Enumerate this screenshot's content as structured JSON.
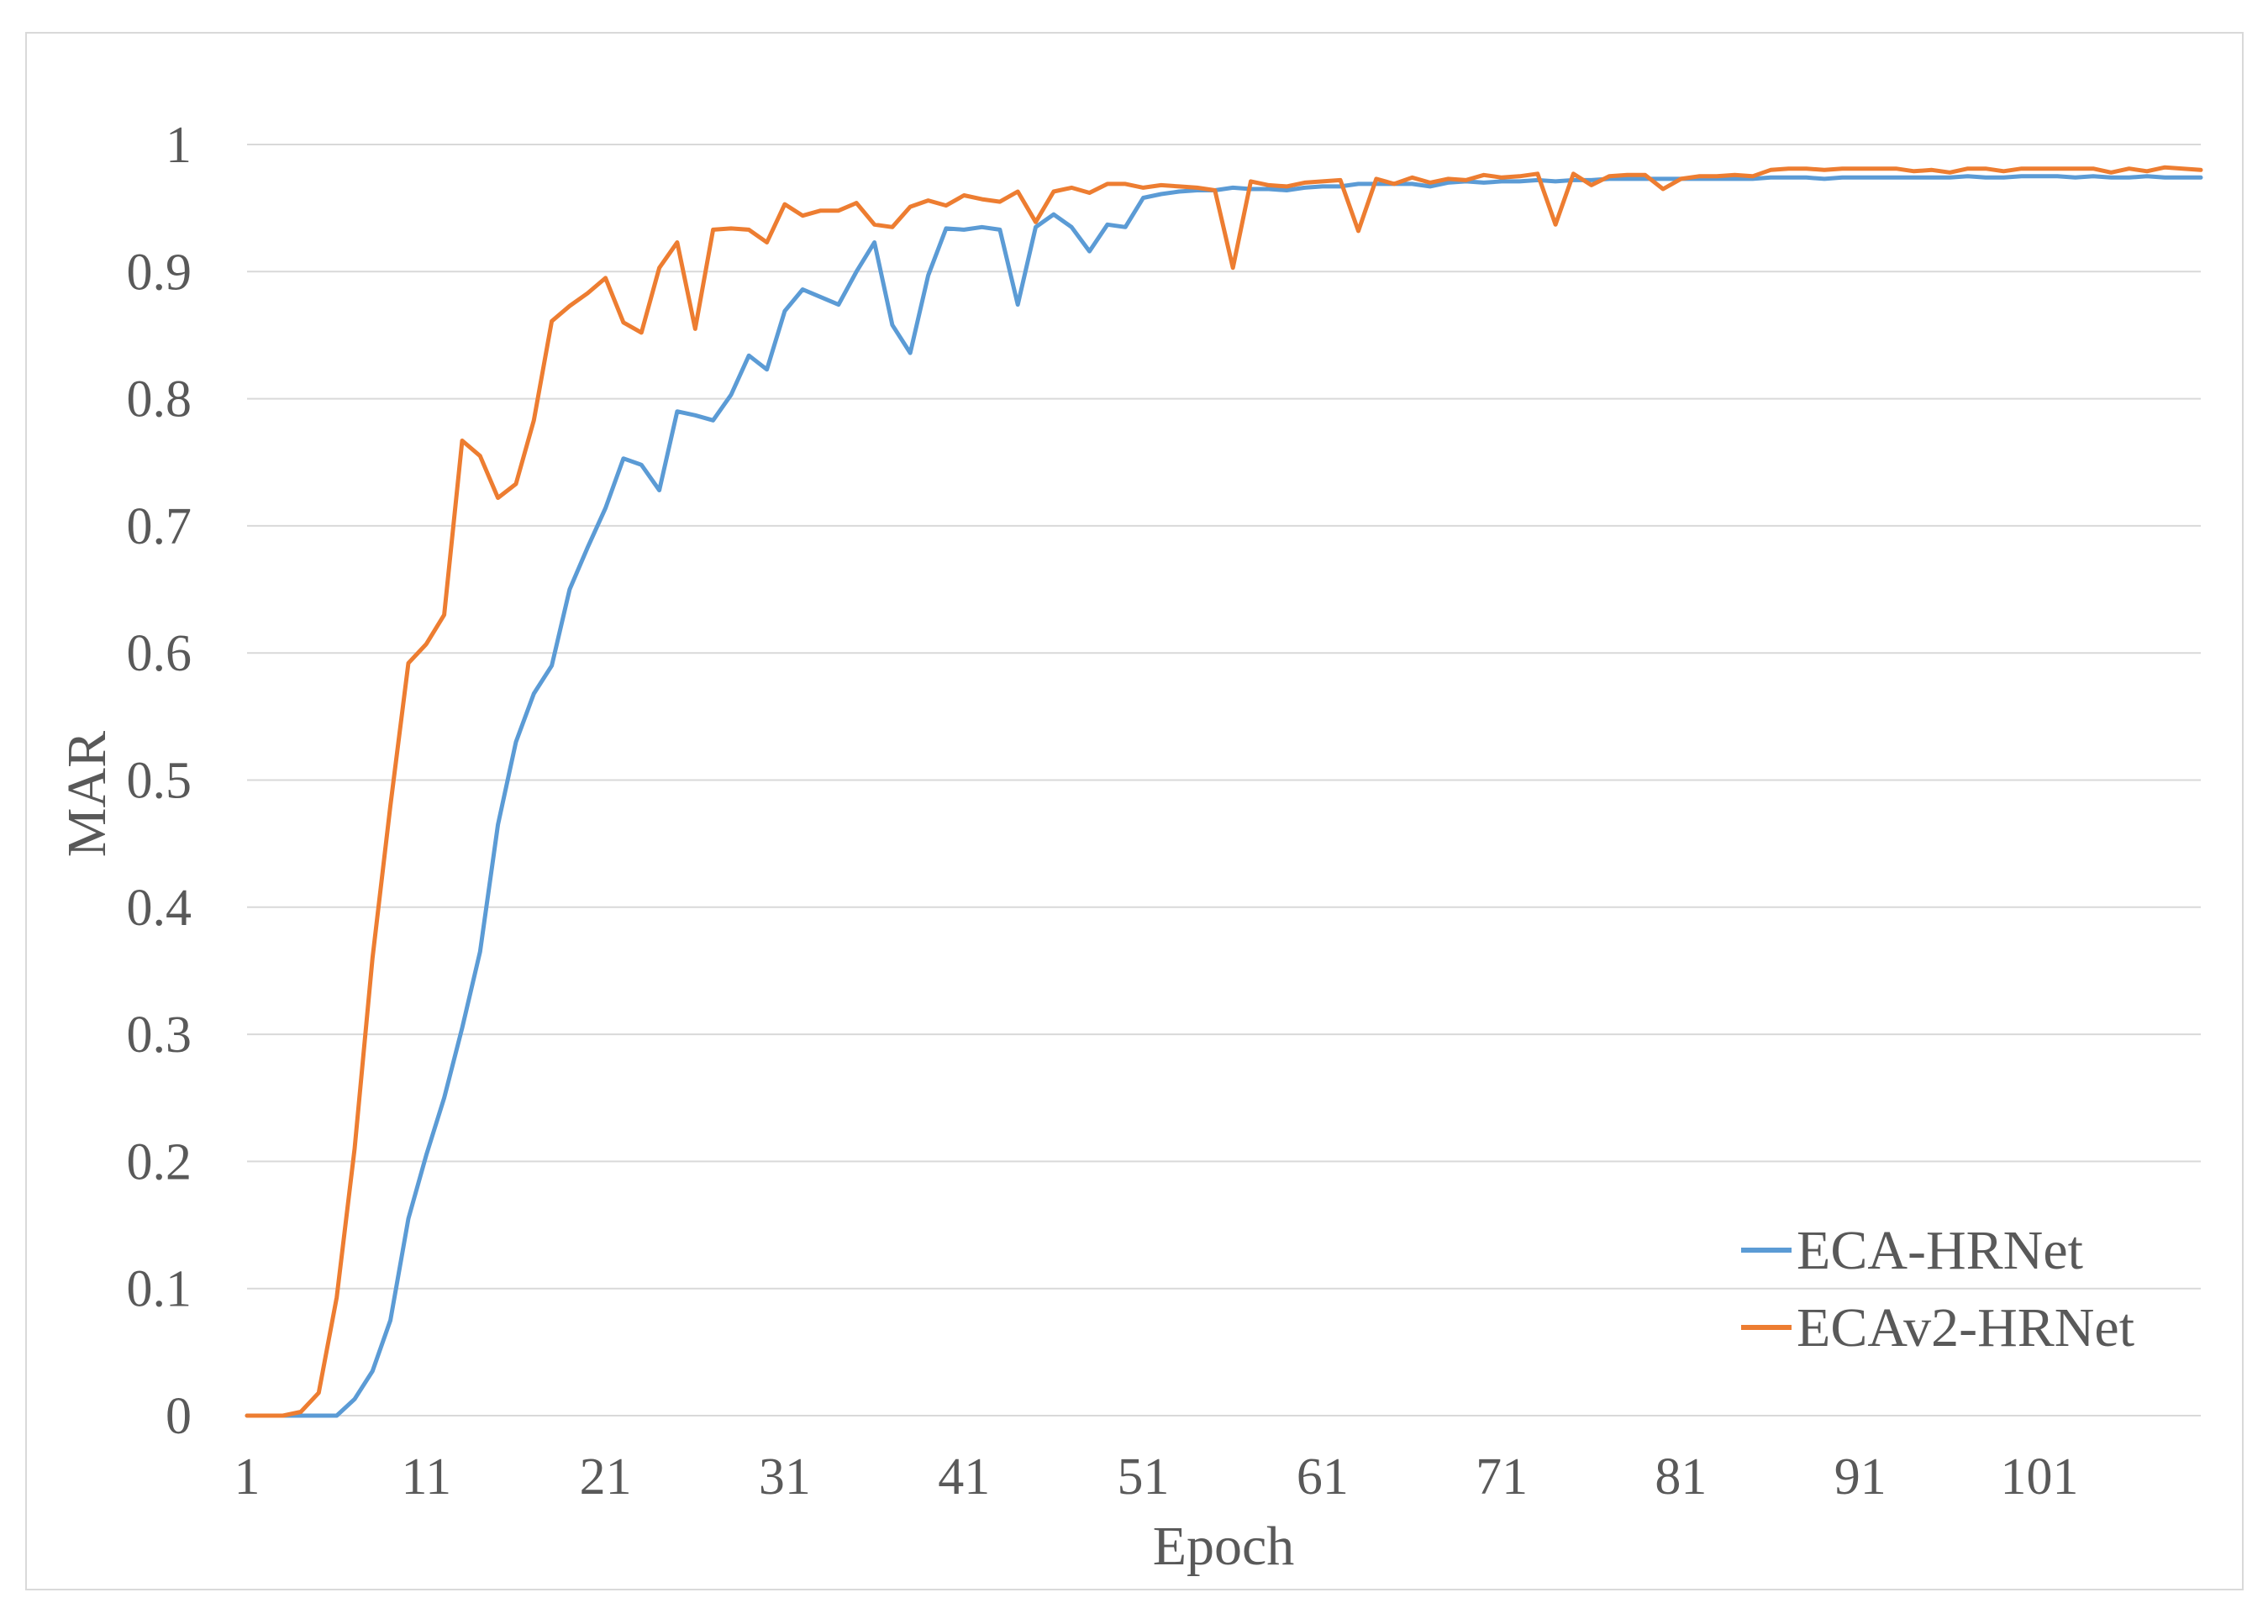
{
  "chart_data": {
    "type": "line",
    "title": "",
    "xlabel": "Epoch",
    "ylabel": "MAR",
    "xlim": [
      1,
      110
    ],
    "ylim": [
      0,
      1
    ],
    "x_ticks": [
      1,
      11,
      21,
      31,
      41,
      51,
      61,
      71,
      81,
      91,
      101
    ],
    "y_ticks": [
      0,
      0.1,
      0.2,
      0.3,
      0.4,
      0.5,
      0.6,
      0.7,
      0.8,
      0.9,
      1
    ],
    "y_tick_labels": [
      "0",
      "0.1",
      "0.2",
      "0.3",
      "0.4",
      "0.5",
      "0.6",
      "0.7",
      "0.8",
      "0.9",
      "1"
    ],
    "grid": true,
    "legend_position": "bottom-right",
    "series": [
      {
        "name": "ECA-HRNet",
        "color": "#5b9bd5",
        "x": [
          1,
          2,
          3,
          4,
          5,
          6,
          7,
          8,
          9,
          10,
          11,
          12,
          13,
          14,
          15,
          16,
          17,
          18,
          19,
          20,
          21,
          22,
          23,
          24,
          25,
          26,
          27,
          28,
          29,
          30,
          31,
          32,
          33,
          34,
          35,
          36,
          37,
          38,
          39,
          40,
          41,
          42,
          43,
          44,
          45,
          46,
          47,
          48,
          49,
          50,
          51,
          52,
          53,
          54,
          55,
          56,
          57,
          58,
          59,
          60,
          61,
          62,
          63,
          64,
          65,
          66,
          67,
          68,
          69,
          70,
          71,
          72,
          73,
          74,
          75,
          76,
          77,
          78,
          79,
          80,
          81,
          82,
          83,
          84,
          85,
          86,
          87,
          88,
          89,
          90,
          91,
          92,
          93,
          94,
          95,
          96,
          97,
          98,
          99,
          100,
          101,
          102,
          103,
          104,
          105,
          106,
          107,
          108,
          109,
          110
        ],
        "values": [
          0,
          0,
          0,
          0,
          0,
          0,
          0.013,
          0.035,
          0.075,
          0.155,
          0.205,
          0.25,
          0.305,
          0.365,
          0.465,
          0.53,
          0.568,
          0.59,
          0.65,
          0.683,
          0.714,
          0.753,
          0.748,
          0.728,
          0.79,
          0.787,
          0.783,
          0.803,
          0.834,
          0.823,
          0.869,
          0.886,
          0.88,
          0.874,
          0.9,
          0.923,
          0.858,
          0.836,
          0.897,
          0.934,
          0.933,
          0.935,
          0.933,
          0.874,
          0.935,
          0.945,
          0.935,
          0.916,
          0.937,
          0.935,
          0.958,
          0.961,
          0.963,
          0.964,
          0.964,
          0.966,
          0.965,
          0.965,
          0.964,
          0.966,
          0.967,
          0.967,
          0.969,
          0.969,
          0.969,
          0.969,
          0.967,
          0.97,
          0.971,
          0.97,
          0.971,
          0.971,
          0.972,
          0.971,
          0.972,
          0.972,
          0.973,
          0.973,
          0.973,
          0.973,
          0.973,
          0.973,
          0.973,
          0.973,
          0.973,
          0.974,
          0.974,
          0.974,
          0.973,
          0.974,
          0.974,
          0.974,
          0.974,
          0.974,
          0.974,
          0.974,
          0.975,
          0.974,
          0.974,
          0.975,
          0.975,
          0.975,
          0.974,
          0.975,
          0.974,
          0.974,
          0.975,
          0.974,
          0.974,
          0.974
        ]
      },
      {
        "name": "ECAv2-HRNet",
        "color": "#ed7d31",
        "x": [
          1,
          2,
          3,
          4,
          5,
          6,
          7,
          8,
          9,
          10,
          11,
          12,
          13,
          14,
          15,
          16,
          17,
          18,
          19,
          20,
          21,
          22,
          23,
          24,
          25,
          26,
          27,
          28,
          29,
          30,
          31,
          32,
          33,
          34,
          35,
          36,
          37,
          38,
          39,
          40,
          41,
          42,
          43,
          44,
          45,
          46,
          47,
          48,
          49,
          50,
          51,
          52,
          53,
          54,
          55,
          56,
          57,
          58,
          59,
          60,
          61,
          62,
          63,
          64,
          65,
          66,
          67,
          68,
          69,
          70,
          71,
          72,
          73,
          74,
          75,
          76,
          77,
          78,
          79,
          80,
          81,
          82,
          83,
          84,
          85,
          86,
          87,
          88,
          89,
          90,
          91,
          92,
          93,
          94,
          95,
          96,
          97,
          98,
          99,
          100,
          101,
          102,
          103,
          104,
          105,
          106,
          107,
          108,
          109,
          110
        ],
        "values": [
          0,
          0,
          0,
          0.003,
          0.018,
          0.093,
          0.21,
          0.36,
          0.48,
          0.592,
          0.607,
          0.63,
          0.767,
          0.755,
          0.722,
          0.733,
          0.783,
          0.861,
          0.873,
          0.883,
          0.895,
          0.86,
          0.852,
          0.903,
          0.923,
          0.855,
          0.933,
          0.934,
          0.933,
          0.923,
          0.953,
          0.944,
          0.948,
          0.948,
          0.954,
          0.937,
          0.935,
          0.951,
          0.956,
          0.952,
          0.96,
          0.957,
          0.955,
          0.963,
          0.939,
          0.963,
          0.966,
          0.962,
          0.969,
          0.969,
          0.966,
          0.968,
          0.967,
          0.966,
          0.964,
          0.903,
          0.971,
          0.968,
          0.967,
          0.97,
          0.971,
          0.972,
          0.932,
          0.973,
          0.969,
          0.974,
          0.97,
          0.973,
          0.972,
          0.976,
          0.974,
          0.975,
          0.977,
          0.937,
          0.977,
          0.968,
          0.975,
          0.976,
          0.976,
          0.965,
          0.973,
          0.975,
          0.975,
          0.976,
          0.975,
          0.98,
          0.981,
          0.981,
          0.98,
          0.981,
          0.981,
          0.981,
          0.981,
          0.979,
          0.98,
          0.978,
          0.981,
          0.981,
          0.979,
          0.981,
          0.981,
          0.981,
          0.981,
          0.981,
          0.978,
          0.981,
          0.979,
          0.982,
          0.981,
          0.98
        ]
      }
    ]
  }
}
